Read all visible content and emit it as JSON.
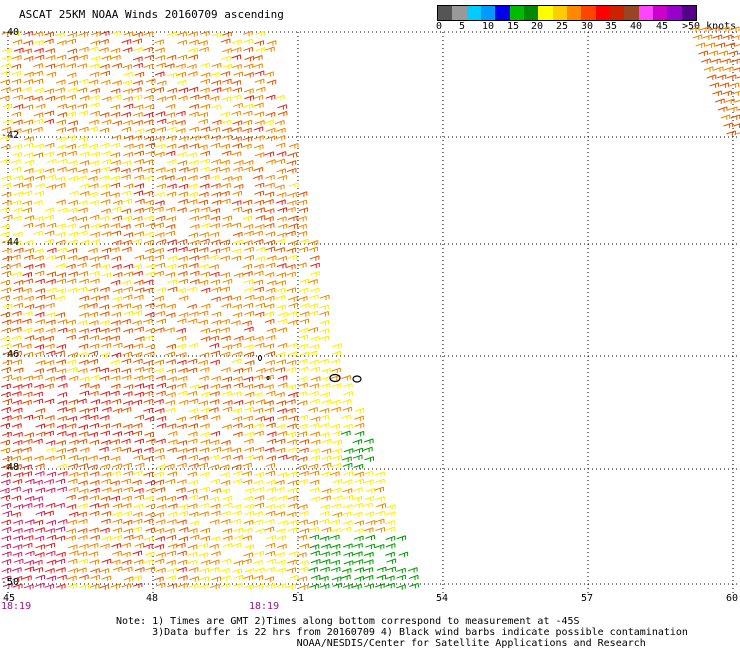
{
  "header": {
    "title": "ASCAT 25KM NOAA Winds 20160709 ascending"
  },
  "colorbar": {
    "colors": [
      "#555555",
      "#999999",
      "#00ccff",
      "#0099ff",
      "#0000ee",
      "#00bb00",
      "#008800",
      "#ffff00",
      "#ffcc00",
      "#ff8800",
      "#ff4400",
      "#ff0000",
      "#cc2200",
      "#994422",
      "#ff44ff",
      "#cc00cc",
      "#9900cc",
      "#550088"
    ],
    "labels": [
      "0",
      "5",
      "10",
      "15",
      "20",
      "25",
      "30",
      "35",
      "40",
      "45",
      ">50 knots"
    ]
  },
  "axes": {
    "lat_labels": [
      "-40",
      "-42",
      "-44",
      "-46",
      "-48",
      "-50"
    ],
    "lon_labels": [
      "45",
      "48",
      "51",
      "54",
      "57",
      "60"
    ]
  },
  "times": [
    "18:19",
    "18:19"
  ],
  "notes": [
    "Note: 1) Times are GMT 2)Times along bottom correspond to measurement at -45S",
    "      3)Data buffer is 22 hrs from 20160709 4) Black wind barbs indicate possible contamination",
    "                              NOAA/NESDIS/Center for Satellite Applications and Research"
  ],
  "legend_colors": {
    "yellow": "#ffee00",
    "orange": "#ee8800",
    "dark_orange": "#dd5500",
    "red": "#dd2222",
    "magenta": "#cc2266",
    "green": "#009900"
  }
}
